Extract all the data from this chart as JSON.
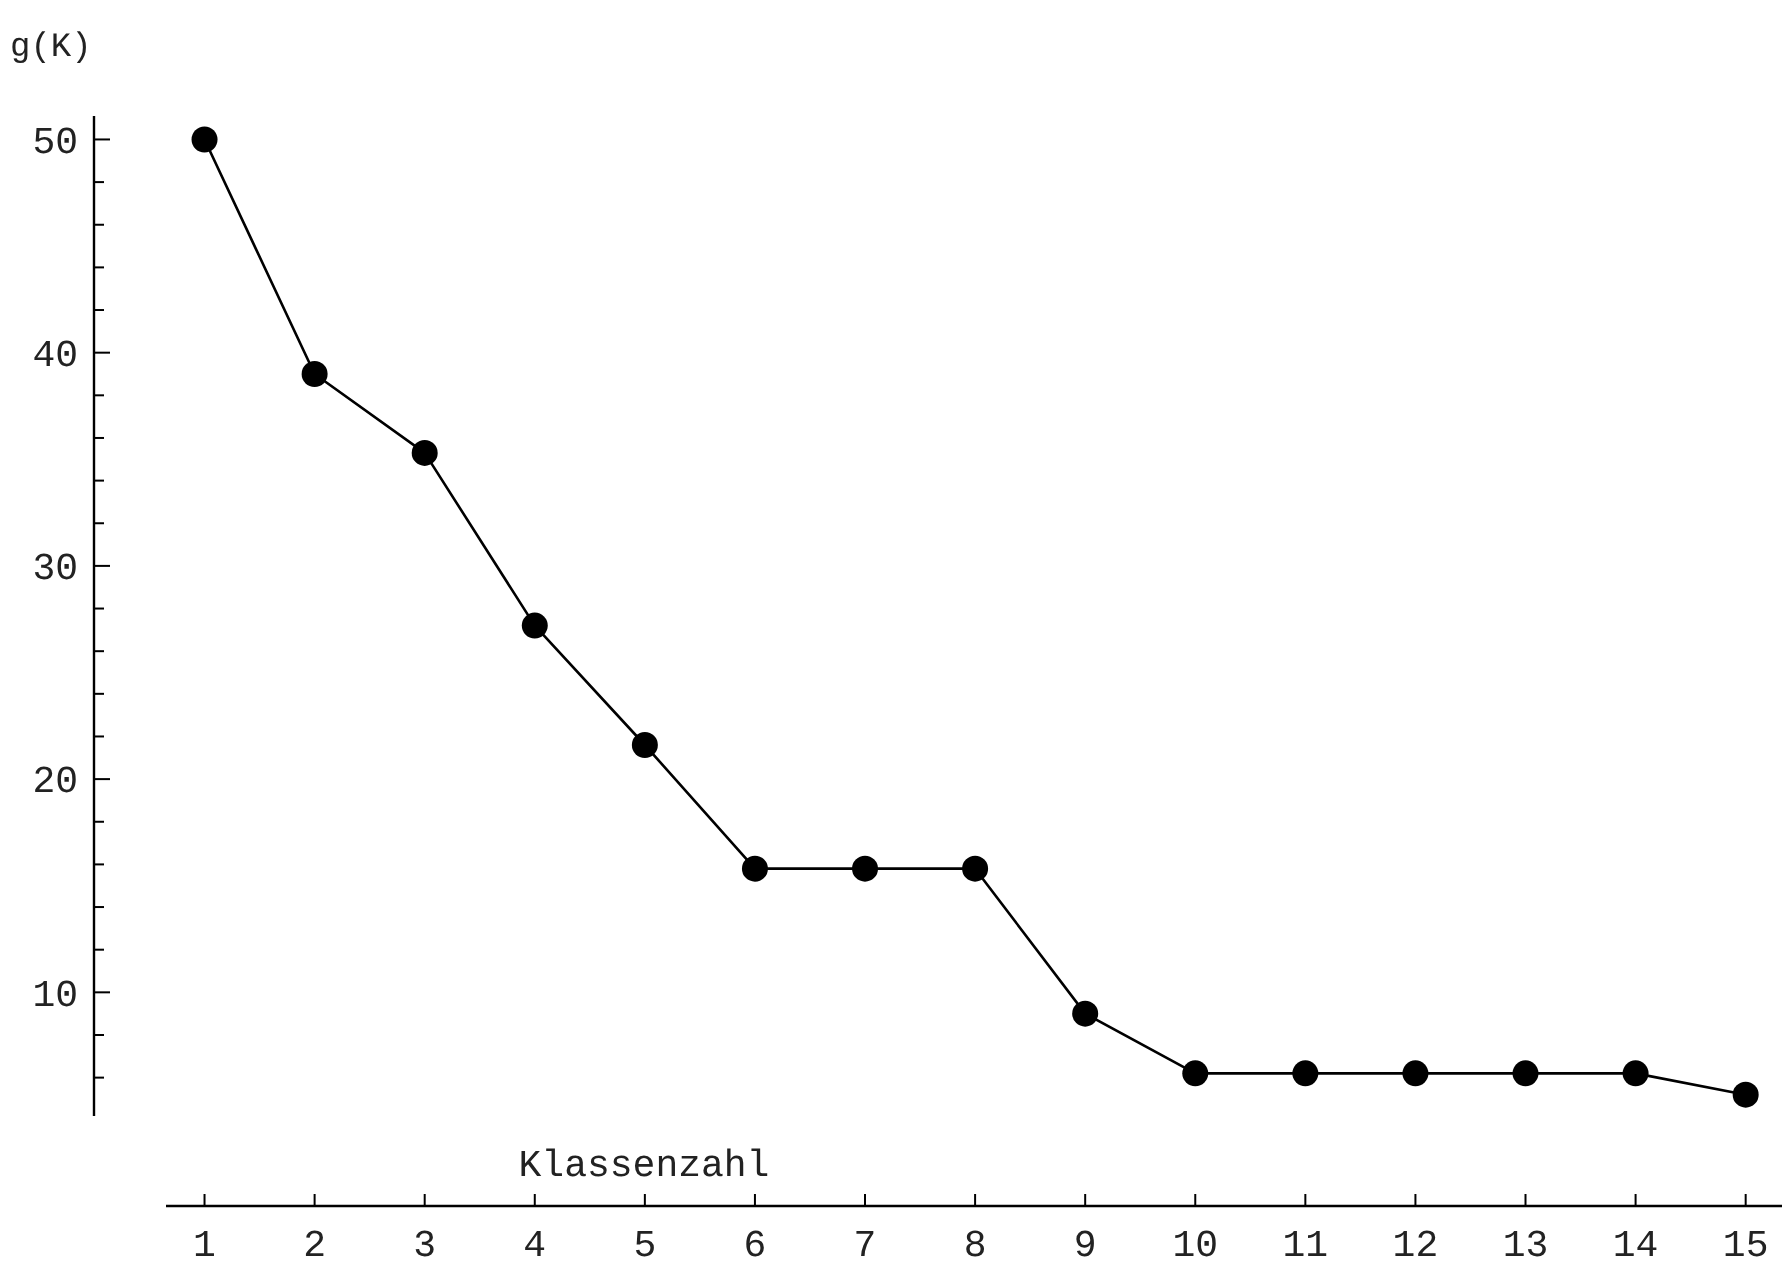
{
  "chart_data": {
    "type": "line",
    "xlabel": "Klassenzahl",
    "ylabel": "g(K)",
    "x": [
      1,
      2,
      3,
      4,
      5,
      6,
      7,
      8,
      9,
      10,
      11,
      12,
      13,
      14,
      15
    ],
    "series": [
      {
        "color": "#000000",
        "values": [
          50,
          39,
          35.3,
          27.2,
          21.6,
          15.8,
          15.8,
          15.8,
          9.0,
          6.2,
          6.2,
          6.2,
          6.2,
          6.2,
          5.2
        ]
      }
    ],
    "xlim": [
      0.65,
      15.33
    ],
    "ylim": [
      4.2,
      51.1
    ],
    "xticks": [
      1,
      2,
      3,
      4,
      5,
      6,
      7,
      8,
      9,
      10,
      11,
      12,
      13,
      14,
      15
    ],
    "yticks": [
      {
        "value": 6,
        "label": null
      },
      {
        "value": 8,
        "label": null
      },
      10,
      {
        "value": 12,
        "label": null
      },
      {
        "value": 14,
        "label": null
      },
      {
        "value": 16,
        "label": null
      },
      {
        "value": 18,
        "label": null
      },
      20,
      {
        "value": 22,
        "label": null
      },
      {
        "value": 24,
        "label": null
      },
      {
        "value": 26,
        "label": null
      },
      {
        "value": 28,
        "label": null
      },
      30,
      {
        "value": 32,
        "label": null
      },
      {
        "value": 34,
        "label": null
      },
      {
        "value": 36,
        "label": null
      },
      {
        "value": 38,
        "label": null
      },
      40,
      {
        "value": 42,
        "label": null
      },
      {
        "value": 44,
        "label": null
      },
      {
        "value": 46,
        "label": null
      },
      {
        "value": 48,
        "label": null
      },
      50
    ],
    "marker": "circle",
    "grid": false
  }
}
